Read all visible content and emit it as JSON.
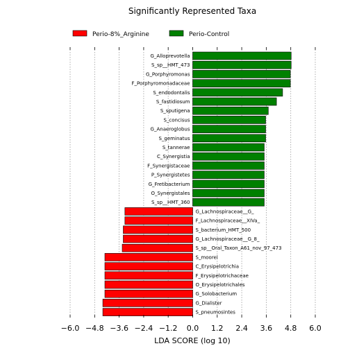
{
  "chart_data": {
    "type": "bar",
    "orientation": "horizontal",
    "title": "Significantly Represented Taxa",
    "xlabel": "LDA SCORE (log 10)",
    "ylabel": "",
    "xlim": [
      -6.0,
      6.0
    ],
    "xticks": [
      "−6.0",
      "−4.8",
      "−3.6",
      "−2.4",
      "−1.2",
      "0.0",
      "1.2",
      "2.4",
      "3.6",
      "4.8",
      "6.0"
    ],
    "xtick_values": [
      -6.0,
      -4.8,
      -3.6,
      -2.4,
      -1.2,
      0.0,
      1.2,
      2.4,
      3.6,
      4.8,
      6.0
    ],
    "grid": "vertical dotted",
    "legend_placement": "top",
    "series": [
      {
        "name": "Perio-8%_Arginine",
        "color": "#ff0000"
      },
      {
        "name": "Perio-Control",
        "color": "#008000"
      }
    ],
    "bars": [
      {
        "label": "G_Alloprevotella",
        "value": 4.82,
        "series": "Perio-Control"
      },
      {
        "label": "S_sp__HMT_473",
        "value": 4.82,
        "series": "Perio-Control"
      },
      {
        "label": "G_Porphyromonas",
        "value": 4.78,
        "series": "Perio-Control"
      },
      {
        "label": "F_Porphyromonadaceae",
        "value": 4.78,
        "series": "Perio-Control"
      },
      {
        "label": "S_endodontalis",
        "value": 4.4,
        "series": "Perio-Control"
      },
      {
        "label": "S_fastidiosum",
        "value": 4.1,
        "series": "Perio-Control"
      },
      {
        "label": "S_sputigena",
        "value": 3.7,
        "series": "Perio-Control"
      },
      {
        "label": "S_concisus",
        "value": 3.57,
        "series": "Perio-Control"
      },
      {
        "label": "G_Anaeroglobus",
        "value": 3.57,
        "series": "Perio-Control"
      },
      {
        "label": "S_geminatus",
        "value": 3.57,
        "series": "Perio-Control"
      },
      {
        "label": "S_tannerae",
        "value": 3.5,
        "series": "Perio-Control"
      },
      {
        "label": "C_Synergistia",
        "value": 3.5,
        "series": "Perio-Control"
      },
      {
        "label": "F_Synergistaceae",
        "value": 3.5,
        "series": "Perio-Control"
      },
      {
        "label": "P_Synergistetes",
        "value": 3.5,
        "series": "Perio-Control"
      },
      {
        "label": "G_Fretibacterium",
        "value": 3.5,
        "series": "Perio-Control"
      },
      {
        "label": "O_Synergistales",
        "value": 3.5,
        "series": "Perio-Control"
      },
      {
        "label": "S_sp__HMT_360",
        "value": 3.5,
        "series": "Perio-Control"
      },
      {
        "label": "G_Lachnospiraceae__G_",
        "value": -3.32,
        "series": "Perio-8%_Arginine"
      },
      {
        "label": "F_Lachnospiraceae__XIVa_",
        "value": -3.32,
        "series": "Perio-8%_Arginine"
      },
      {
        "label": "S_bacterium_HMT_500",
        "value": -3.4,
        "series": "Perio-8%_Arginine"
      },
      {
        "label": "G_Lachnospiraceae__G_8_",
        "value": -3.4,
        "series": "Perio-8%_Arginine"
      },
      {
        "label": "S_sp__Oral_Taxon_A61_nov_97_473",
        "value": -3.45,
        "series": "Perio-8%_Arginine"
      },
      {
        "label": "S_moorei",
        "value": -4.3,
        "series": "Perio-8%_Arginine"
      },
      {
        "label": "C_Erysipelotrichia",
        "value": -4.3,
        "series": "Perio-8%_Arginine"
      },
      {
        "label": "F_Erysipelotrichaceae",
        "value": -4.3,
        "series": "Perio-8%_Arginine"
      },
      {
        "label": "O_Erysipelotrichales",
        "value": -4.3,
        "series": "Perio-8%_Arginine"
      },
      {
        "label": "G_Solobacterium",
        "value": -4.3,
        "series": "Perio-8%_Arginine"
      },
      {
        "label": "G_Dialister",
        "value": -4.4,
        "series": "Perio-8%_Arginine"
      },
      {
        "label": "S_pneumosintes",
        "value": -4.4,
        "series": "Perio-8%_Arginine"
      }
    ]
  }
}
